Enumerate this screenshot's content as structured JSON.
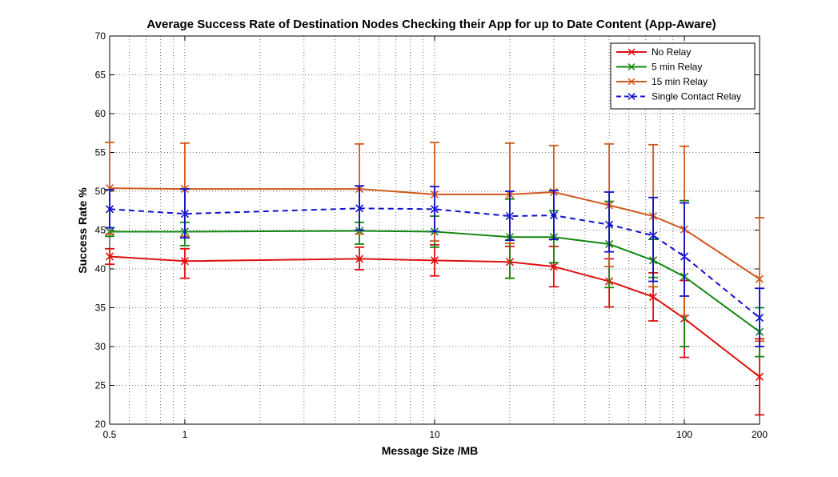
{
  "chart_data": {
    "type": "line",
    "title": "Average Success Rate of Destination Nodes Checking their App for up to Date Content (App-Aware)",
    "xlabel": "Message Size /MB",
    "ylabel": "Success Rate %",
    "xscale": "log",
    "xlim": [
      0.5,
      200
    ],
    "ylim": [
      20,
      70
    ],
    "grid": true,
    "legend_position": "top-right",
    "x": [
      0.5,
      1,
      5,
      10,
      20,
      30,
      50,
      75,
      100,
      200
    ],
    "xtick_values": [
      0.5,
      1,
      10,
      100,
      200
    ],
    "xtick_labels": [
      "0.5",
      "1",
      "10",
      "100",
      "200"
    ],
    "ytick_values": [
      20,
      25,
      30,
      35,
      40,
      45,
      50,
      55,
      60,
      65,
      70
    ],
    "ytick_labels": [
      "20",
      "25",
      "30",
      "35",
      "40",
      "45",
      "50",
      "55",
      "60",
      "65",
      "70"
    ],
    "series": [
      {
        "name": "No Relay",
        "color": "#dd1111",
        "dash": "solid",
        "values": [
          41.6,
          41.0,
          41.3,
          41.1,
          40.9,
          40.3,
          38.4,
          36.4,
          33.6,
          26.1
        ],
        "err_low": [
          40.6,
          38.8,
          39.9,
          39.1,
          38.8,
          37.7,
          35.1,
          33.3,
          28.6,
          21.2
        ],
        "err_high": [
          42.6,
          42.6,
          42.8,
          43.1,
          42.9,
          42.9,
          41.3,
          39.5,
          38.5,
          31.0
        ]
      },
      {
        "name": "5 min Relay",
        "color": "#118811",
        "dash": "solid",
        "values": [
          44.8,
          44.8,
          44.9,
          44.8,
          44.1,
          44.1,
          43.2,
          41.1,
          39.0,
          31.9
        ],
        "err_low": [
          44.2,
          43.0,
          43.2,
          42.8,
          38.8,
          40.8,
          37.6,
          38.9,
          30.0,
          28.7
        ],
        "err_high": [
          45.3,
          46.0,
          46.0,
          46.8,
          49.0,
          47.5,
          48.7,
          43.8,
          48.8,
          35.0
        ]
      },
      {
        "name": "15 min Relay",
        "color": "#d05a1e",
        "dash": "solid",
        "values": [
          50.4,
          50.3,
          50.3,
          49.6,
          49.6,
          49.9,
          48.2,
          46.8,
          45.1,
          38.7
        ],
        "err_low": [
          44.5,
          44.2,
          44.5,
          43.6,
          43.3,
          43.8,
          40.3,
          37.7,
          34.0,
          30.7
        ],
        "err_high": [
          56.3,
          56.2,
          56.1,
          56.3,
          56.2,
          55.9,
          56.1,
          56.0,
          55.8,
          46.6
        ]
      },
      {
        "name": "Single Contact Relay",
        "color": "#1010cc",
        "dash": "dashed",
        "values": [
          47.7,
          47.1,
          47.8,
          47.7,
          46.8,
          46.9,
          45.7,
          44.3,
          41.6,
          33.7
        ],
        "err_low": [
          45.3,
          44.0,
          45.0,
          44.8,
          43.7,
          43.8,
          42.2,
          38.4,
          36.5,
          30.0
        ],
        "err_high": [
          50.2,
          50.3,
          50.7,
          50.6,
          50.0,
          50.1,
          49.9,
          49.2,
          48.5,
          37.5
        ]
      }
    ]
  }
}
